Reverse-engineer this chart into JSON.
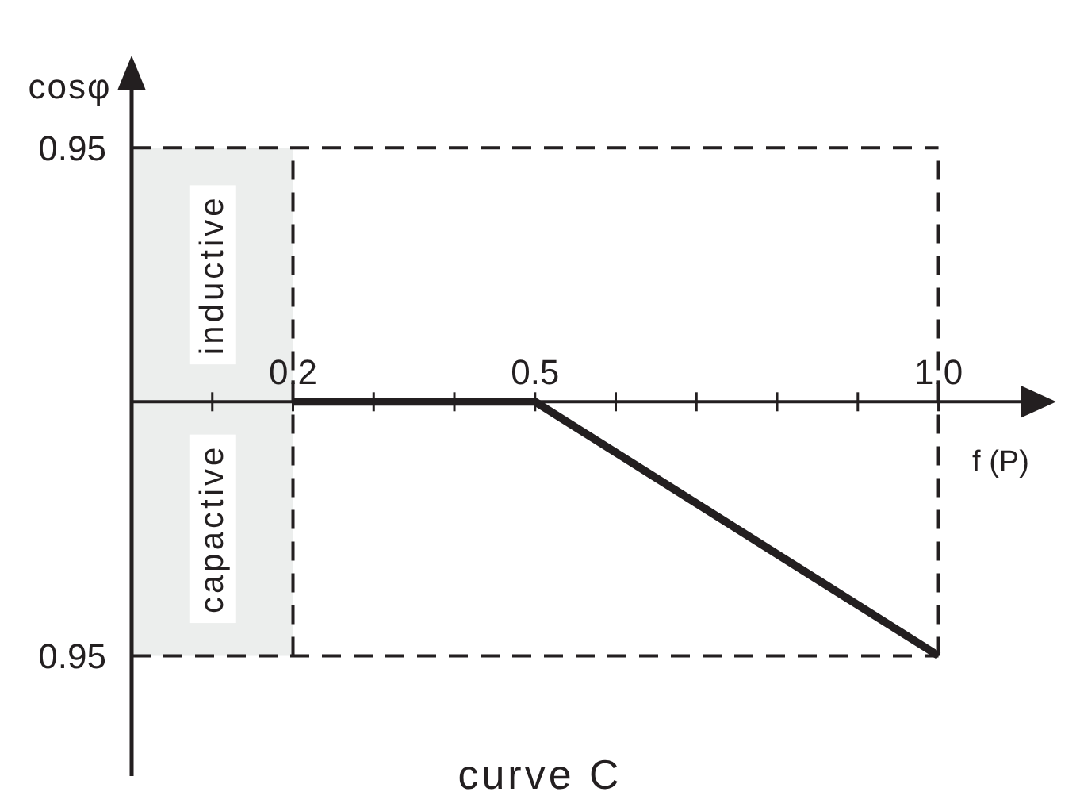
{
  "chart_data": {
    "type": "line",
    "title": "curve C",
    "xlabel": "f (P)",
    "ylabel": "cosφ",
    "x": [
      0.2,
      0.5,
      1.0
    ],
    "series": [
      {
        "color": "#231f20",
        "values": [
          0,
          0,
          -0.95
        ]
      }
    ],
    "xlim": [
      0,
      1.14
    ],
    "xticks": [
      {
        "value": 0.1,
        "label": null
      },
      0.2,
      {
        "value": 0.3,
        "label": null
      },
      {
        "value": 0.4,
        "label": null
      },
      0.5,
      {
        "value": 0.6,
        "label": null
      },
      {
        "value": 0.7,
        "label": null
      },
      {
        "value": 0.8,
        "label": null
      },
      {
        "value": 0.9,
        "label": null
      },
      {
        "value": 1,
        "label": "1.0"
      }
    ],
    "ylim": [
      -1.4,
      1.2
    ],
    "yticks": [
      0.95,
      {
        "value": -0.95,
        "label": "0.95"
      }
    ],
    "ref_lines": [
      {
        "axis": "x",
        "value": 0.2,
        "line_style": "dashed",
        "color": "#231f20"
      },
      {
        "axis": "x",
        "value": 1,
        "line_style": "dashed",
        "color": "#231f20"
      },
      {
        "axis": "y",
        "value": 0.95,
        "line_style": "dashed",
        "color": "#231f20"
      },
      {
        "axis": "y",
        "value": -0.95,
        "line_style": "dashed",
        "color": "#231f20"
      }
    ],
    "bands": [
      {
        "axis": "x",
        "from": 0,
        "to": 0.2,
        "color": "#eceeed"
      }
    ],
    "annotations": [
      "inductive",
      "capactive"
    ],
    "marker": "none",
    "line_style": "solid"
  }
}
